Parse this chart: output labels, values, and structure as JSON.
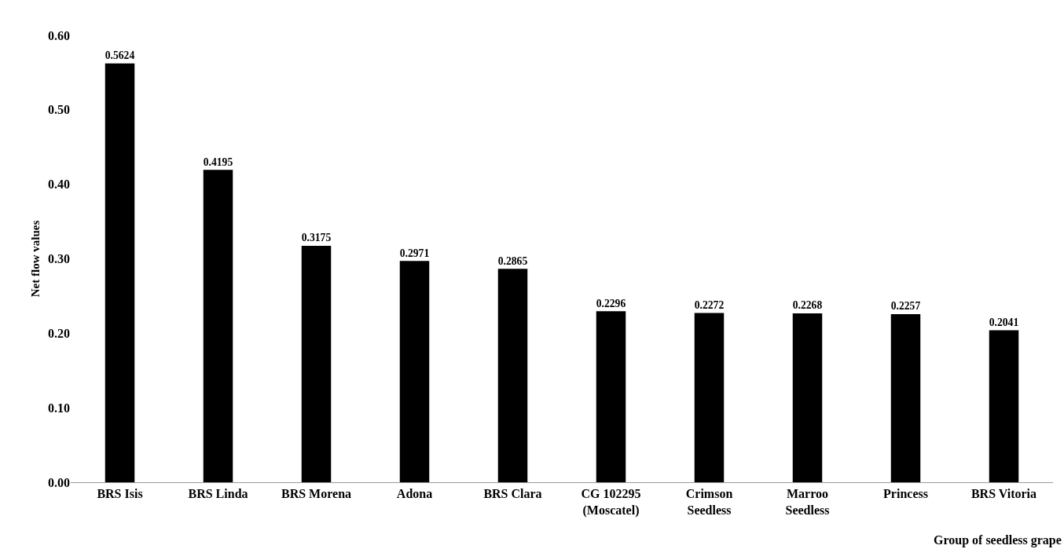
{
  "chart_data": {
    "type": "bar",
    "xlabel": "Group of seedless grape",
    "ylabel": "Net flow values",
    "categories": [
      "BRS Isis",
      "BRS Linda",
      "BRS Morena",
      "Adona",
      "BRS Clara",
      "CG 102295\n(Moscatel)",
      "Crimson\nSeedless",
      "Marroo\nSeedless",
      "Princess",
      "BRS Vitoria"
    ],
    "values": [
      0.5624,
      0.4195,
      0.3175,
      0.2971,
      0.2865,
      0.2296,
      0.2272,
      0.2268,
      0.2257,
      0.2041
    ],
    "color": "#000000",
    "data_labels": true,
    "grid": false,
    "legend": false,
    "ylim": [
      0,
      0.6
    ],
    "yticks": [
      {
        "value": 0,
        "label": "0.00"
      },
      {
        "value": 0.1,
        "label": "0.10"
      },
      {
        "value": 0.2,
        "label": "0.20"
      },
      {
        "value": 0.3,
        "label": "0.30"
      },
      {
        "value": 0.4,
        "label": "0.40"
      },
      {
        "value": 0.5,
        "label": "0.50"
      },
      {
        "value": 0.6,
        "label": "0.60"
      }
    ]
  }
}
